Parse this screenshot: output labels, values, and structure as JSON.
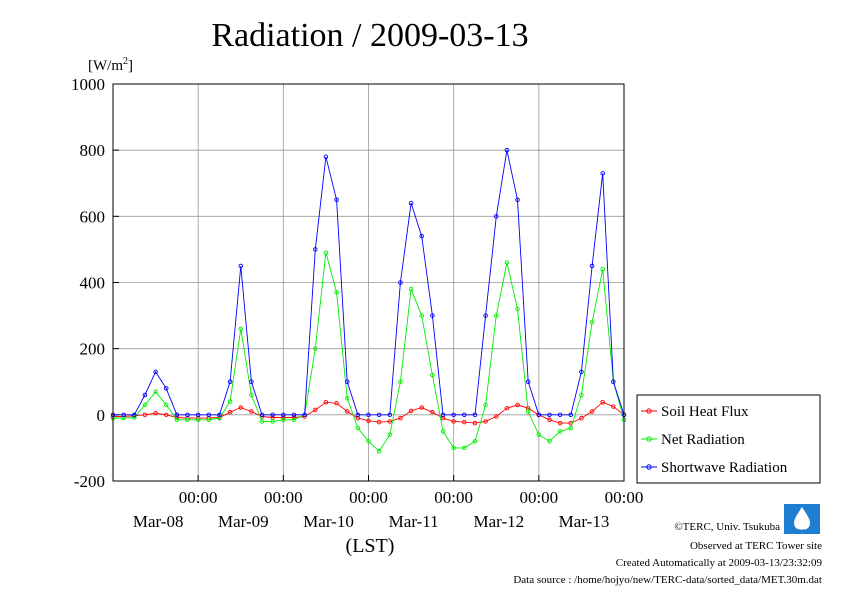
{
  "title": "Radiation / 2009-03-13",
  "y_unit": "[W/m",
  "y_unit_sup": "2",
  "y_unit_end": "]",
  "x_axis_label": "(LST)",
  "credits": {
    "copyright": "©TERC, Univ. Tsukuba",
    "observed": "Observed at TERC Tower site",
    "created": "Created Automatically at 2009-03-13/23:32:09",
    "source": "Data source : /home/hojyo/new/TERC-data/sorted_data/MET.30m.dat"
  },
  "logo_text": "TERC",
  "chart_data": {
    "type": "line",
    "title": "Radiation / 2009-03-13",
    "ylabel": "[W/m2]",
    "xlabel": "(LST)",
    "ylim": [
      -200,
      1000
    ],
    "xlim": [
      -1,
      5.0
    ],
    "y_ticks": [
      -200,
      0,
      200,
      400,
      600,
      800,
      1000
    ],
    "y_tick_labels": [
      "-200",
      "0",
      "200",
      "400",
      "600",
      "800",
      "1000"
    ],
    "x_ticks": [
      0,
      1,
      2,
      3,
      4,
      5
    ],
    "x_tick_time_labels": [
      "00:00",
      "00:00",
      "00:00",
      "00:00",
      "00:00",
      "00:00"
    ],
    "x_tick_date_labels": [
      "Mar-08",
      "Mar-09",
      "Mar-10",
      "Mar-11",
      "Mar-12",
      "Mar-13"
    ],
    "grid": true,
    "legend_position": "right",
    "series": [
      {
        "name": "Soil Heat Flux",
        "color": "#ff0000",
        "x": [
          -1.0,
          -0.875,
          -0.75,
          -0.625,
          -0.5,
          -0.375,
          -0.25,
          -0.125,
          0.0,
          0.125,
          0.25,
          0.375,
          0.5,
          0.625,
          0.75,
          0.875,
          1.0,
          1.125,
          1.25,
          1.375,
          1.5,
          1.625,
          1.75,
          1.875,
          2.0,
          2.125,
          2.25,
          2.375,
          2.5,
          2.625,
          2.75,
          2.875,
          3.0,
          3.125,
          3.25,
          3.375,
          3.5,
          3.625,
          3.75,
          3.875,
          4.0,
          4.125,
          4.25,
          4.375,
          4.5,
          4.625,
          4.75,
          4.875,
          5.0
        ],
        "y": [
          -5,
          -5,
          -3,
          0,
          5,
          0,
          -8,
          -10,
          -10,
          -10,
          -8,
          8,
          22,
          10,
          -5,
          -8,
          -8,
          -8,
          -5,
          15,
          38,
          35,
          10,
          -10,
          -18,
          -22,
          -20,
          -10,
          12,
          22,
          8,
          -10,
          -20,
          -22,
          -25,
          -20,
          -5,
          20,
          30,
          20,
          0,
          -15,
          -25,
          -25,
          -10,
          10,
          38,
          25,
          0
        ]
      },
      {
        "name": "Net Radiation",
        "color": "#00ee00",
        "x": [
          -1.0,
          -0.875,
          -0.75,
          -0.625,
          -0.5,
          -0.375,
          -0.25,
          -0.125,
          0.0,
          0.125,
          0.25,
          0.375,
          0.5,
          0.625,
          0.75,
          0.875,
          1.0,
          1.125,
          1.25,
          1.375,
          1.5,
          1.625,
          1.75,
          1.875,
          2.0,
          2.125,
          2.25,
          2.375,
          2.5,
          2.625,
          2.75,
          2.875,
          3.0,
          3.125,
          3.25,
          3.375,
          3.5,
          3.625,
          3.75,
          3.875,
          4.0,
          4.125,
          4.25,
          4.375,
          4.5,
          4.625,
          4.75,
          4.875,
          5.0
        ],
        "y": [
          -10,
          -10,
          -8,
          30,
          70,
          30,
          -15,
          -15,
          -15,
          -15,
          -10,
          40,
          260,
          60,
          -20,
          -20,
          -15,
          -15,
          0,
          200,
          490,
          370,
          50,
          -40,
          -80,
          -110,
          -60,
          100,
          380,
          300,
          120,
          -50,
          -100,
          -100,
          -80,
          30,
          300,
          460,
          320,
          10,
          -60,
          -80,
          -50,
          -40,
          60,
          280,
          440,
          100,
          -15
        ]
      },
      {
        "name": "Shortwave Radiation",
        "color": "#0000ff",
        "x": [
          -1.0,
          -0.875,
          -0.75,
          -0.625,
          -0.5,
          -0.375,
          -0.25,
          -0.125,
          0.0,
          0.125,
          0.25,
          0.375,
          0.5,
          0.625,
          0.75,
          0.875,
          1.0,
          1.125,
          1.25,
          1.375,
          1.5,
          1.625,
          1.75,
          1.875,
          2.0,
          2.125,
          2.25,
          2.375,
          2.5,
          2.625,
          2.75,
          2.875,
          3.0,
          3.125,
          3.25,
          3.375,
          3.5,
          3.625,
          3.75,
          3.875,
          4.0,
          4.125,
          4.25,
          4.375,
          4.5,
          4.625,
          4.75,
          4.875,
          5.0
        ],
        "y": [
          0,
          0,
          0,
          60,
          130,
          80,
          0,
          0,
          0,
          0,
          0,
          100,
          450,
          100,
          0,
          0,
          0,
          0,
          0,
          500,
          780,
          650,
          100,
          0,
          0,
          0,
          0,
          400,
          640,
          540,
          300,
          0,
          0,
          0,
          0,
          300,
          600,
          800,
          650,
          100,
          0,
          0,
          0,
          0,
          130,
          450,
          730,
          100,
          0
        ]
      }
    ]
  }
}
